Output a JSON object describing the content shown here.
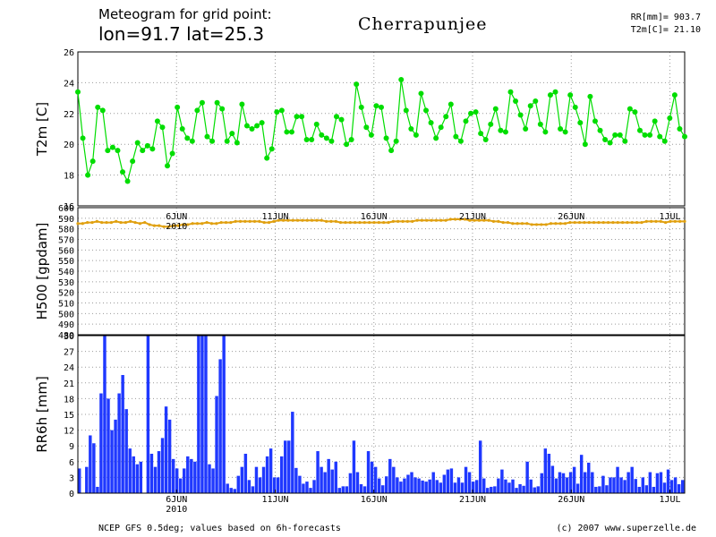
{
  "header": {
    "line1": "Meteogram for grid point:",
    "line2": "lon=91.7 lat=25.3",
    "location": "Cherrapunjee",
    "rr_total": "RR[mm]= 903.7",
    "t2m_mean": "T2m[C]= 21.10"
  },
  "footer": {
    "source": "NCEP GFS 0.5deg; values based on 6h-forecasts",
    "copyright": "(c) 2007 www.superzelle.de"
  },
  "colors": {
    "t2m": "#00dd00",
    "h500": "#e0a010",
    "rr6h": "#1f38ff",
    "grid": "#9a9a9a"
  },
  "chart_data": [
    {
      "type": "line",
      "ylabel": "T2m [C]",
      "ylim": [
        16,
        26
      ],
      "yticks": [
        16,
        18,
        20,
        22,
        24,
        26
      ],
      "grid": true,
      "time_step_hours": 6,
      "x_ticks": [
        "6JUN",
        "11JUN",
        "16JUN",
        "21JUN",
        "26JUN",
        "1JUL"
      ],
      "series": [
        {
          "values": [
            23.4,
            20.4,
            18.0,
            18.9,
            22.4,
            22.2,
            19.6,
            19.8,
            19.6,
            18.2,
            17.6,
            18.9,
            20.1,
            19.6,
            19.9,
            19.7,
            21.5,
            21.1,
            18.6,
            19.4,
            22.4,
            21.0,
            20.4,
            20.2,
            22.2,
            22.7,
            20.5,
            20.2,
            22.7,
            22.3,
            20.2,
            20.7,
            20.1,
            22.6,
            21.2,
            21.0,
            21.2,
            21.4,
            19.1,
            19.7,
            22.1,
            22.2,
            20.8,
            20.8,
            21.8,
            21.8,
            20.3,
            20.3,
            21.3,
            20.6,
            20.4,
            20.2,
            21.8,
            21.6,
            20.0,
            20.3,
            23.9,
            22.4,
            21.1,
            20.6,
            22.5,
            22.4,
            20.4,
            19.6,
            20.2,
            24.2,
            22.2,
            21.0,
            20.6,
            23.3,
            22.2,
            21.4,
            20.4,
            21.1,
            21.8,
            22.6,
            20.5,
            20.2,
            21.5,
            22.0,
            22.1,
            20.7,
            20.3,
            21.3,
            22.3,
            20.9,
            20.8,
            23.4,
            22.8,
            21.9,
            21.0,
            22.5,
            22.8,
            21.3,
            20.8,
            23.2,
            23.4,
            21.0,
            20.8,
            23.2,
            22.4,
            21.4,
            20.0,
            23.1,
            21.5,
            20.9,
            20.3,
            20.1,
            20.6,
            20.6,
            20.2,
            22.3,
            22.1,
            20.9,
            20.6,
            20.6,
            21.5,
            20.5,
            20.2,
            21.7,
            23.2,
            21.0,
            20.5
          ]
        }
      ]
    },
    {
      "type": "line",
      "ylabel": "H500 [gpdam]",
      "ylim": [
        480,
        600
      ],
      "yticks": [
        480,
        490,
        500,
        510,
        520,
        530,
        540,
        550,
        560,
        570,
        580,
        590,
        600
      ],
      "grid": true,
      "time_step_hours": 6,
      "x_ticks": [
        "6JUN",
        "11JUN",
        "16JUN",
        "21JUN",
        "26JUN",
        "1JUL"
      ],
      "x_ticks_sub": {
        "6JUN": "2010"
      },
      "series": [
        {
          "values": [
            585,
            585,
            586,
            586,
            587,
            586,
            586,
            586,
            587,
            586,
            586,
            587,
            586,
            585,
            586,
            584,
            583,
            583,
            582,
            582,
            583,
            583,
            584,
            584,
            585,
            585,
            585,
            586,
            585,
            585,
            586,
            586,
            586,
            587,
            587,
            587,
            587,
            587,
            587,
            586,
            586,
            587,
            588,
            588,
            588,
            588,
            588,
            588,
            588,
            588,
            588,
            588,
            587,
            587,
            587,
            586,
            586,
            586,
            586,
            586,
            586,
            586,
            586,
            586,
            586,
            586,
            587,
            587,
            587,
            587,
            587,
            588,
            588,
            588,
            588,
            588,
            588,
            588,
            589,
            589,
            589,
            589,
            588,
            588,
            588,
            588,
            588,
            587,
            587,
            586,
            586,
            585,
            585,
            585,
            585,
            584,
            584,
            584,
            584,
            585,
            585,
            585,
            585,
            586,
            586,
            586,
            586,
            586,
            586,
            586,
            586,
            586,
            586,
            586,
            586,
            586,
            586,
            586,
            586,
            587,
            587,
            587,
            587,
            586,
            587,
            587,
            587,
            587
          ]
        }
      ]
    },
    {
      "type": "bar",
      "ylabel": "RR6h [mm]",
      "ylim": [
        0,
        30
      ],
      "yticks": [
        0,
        3,
        6,
        9,
        12,
        15,
        18,
        21,
        24,
        27,
        30
      ],
      "ytick_labels": [
        "0",
        "3",
        "6",
        "9",
        "12",
        "15",
        "18",
        "21",
        "24",
        "27",
        "30"
      ],
      "grid": true,
      "time_step_hours": 6,
      "x_ticks": [
        "6JUN",
        "11JUN",
        "16JUN",
        "21JUN",
        "26JUN",
        "1JUL"
      ],
      "x_ticks_sub": {
        "6JUN": "2010"
      },
      "series": [
        {
          "values": [
            4.7,
            0,
            5.0,
            11.0,
            9.5,
            1.2,
            19.0,
            30,
            18.0,
            12.0,
            14.0,
            19.0,
            22.5,
            16.0,
            8.5,
            7.0,
            5.5,
            6.0,
            0,
            30,
            7.5,
            5.0,
            8.0,
            10.5,
            16.5,
            14.0,
            6.5,
            4.7,
            2.8,
            4.7,
            7.0,
            6.5,
            6.0,
            30,
            30,
            30,
            5.5,
            4.7,
            18.5,
            25.5,
            30,
            1.8,
            1.0,
            0.8,
            3.3,
            5.0,
            7.5,
            2.5,
            1.3,
            5.0,
            3.0,
            5.0,
            7.0,
            8.5,
            3.0,
            3.0,
            7.0,
            10.0,
            10.0,
            15.5,
            4.8,
            3.3,
            1.8,
            2.2,
            1.0,
            2.5,
            8.0,
            5.0,
            4.0,
            6.5,
            4.5,
            6.0,
            1.0,
            1.3,
            1.3,
            3.8,
            10.0,
            4.0,
            1.7,
            1.3,
            8.0,
            6.0,
            5.0,
            2.8,
            1.5,
            3.2,
            6.5,
            5.0,
            3.0,
            2.2,
            2.8,
            3.5,
            4.0,
            3.0,
            2.8,
            2.4,
            2.2,
            2.6,
            4.0,
            2.5,
            2.0,
            3.5,
            4.5,
            4.7,
            2.0,
            3.0,
            2.0,
            5.0,
            4.0,
            2.2,
            2.5,
            10.0,
            2.8,
            1.0,
            1.2,
            1.3,
            2.8,
            4.5,
            2.6,
            2.0,
            2.6,
            1.0,
            1.7,
            1.4,
            6.0,
            2.6,
            1.1,
            1.3,
            3.8,
            8.5,
            7.5,
            5.2,
            2.8,
            4.0,
            3.8,
            3.0,
            4.0,
            5.0,
            1.8,
            7.3,
            4.0,
            5.8,
            4.0,
            1.2,
            1.3,
            3.3,
            1.5,
            3.0,
            3.0,
            5.0,
            3.0,
            2.5,
            4.0,
            5.0,
            2.7,
            1.2,
            3.0,
            1.5,
            4.0,
            1.2,
            3.8,
            4.0,
            2.0,
            4.5,
            2.5,
            3.0,
            1.7,
            2.5
          ]
        }
      ]
    }
  ]
}
